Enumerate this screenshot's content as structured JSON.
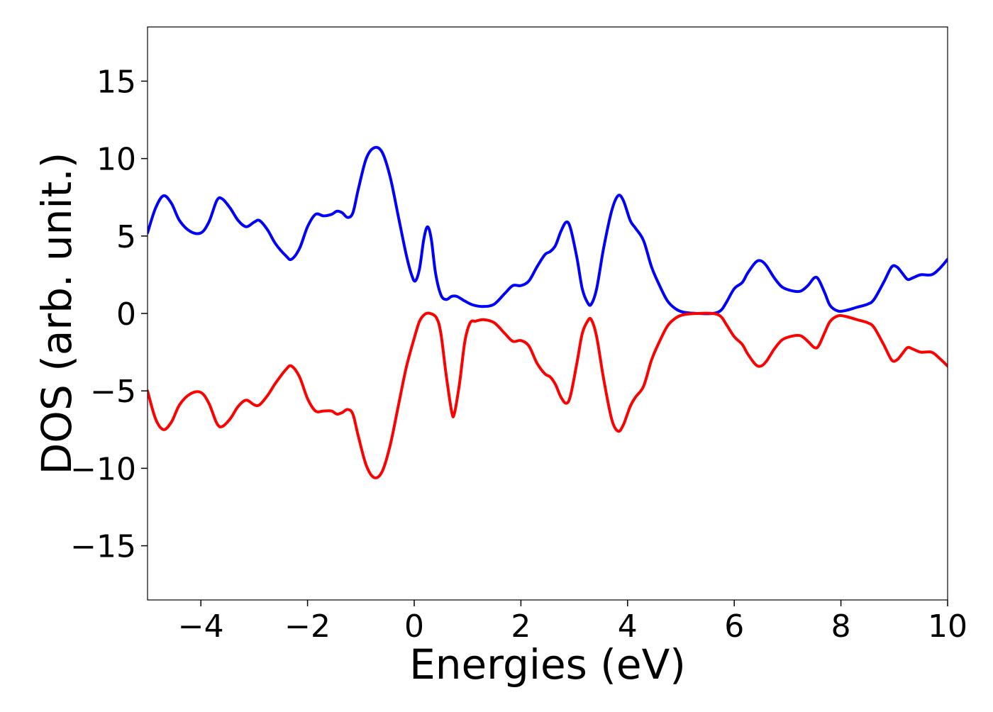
{
  "chart_data": {
    "type": "line",
    "title": "",
    "xlabel": "Energies (eV)",
    "ylabel": "DOS (arb. unit.)",
    "xlim": [
      -5,
      10
    ],
    "ylim": [
      -18.5,
      18.5
    ],
    "xticks": [
      -4,
      -2,
      0,
      2,
      4,
      6,
      8,
      10
    ],
    "xtick_labels": [
      "−4",
      "−2",
      "0",
      "2",
      "4",
      "6",
      "8",
      "10"
    ],
    "yticks": [
      15,
      10,
      5,
      0,
      -5,
      -10,
      -15
    ],
    "ytick_labels": [
      "15",
      "10",
      "5",
      "0",
      "−5",
      "−10",
      "−15"
    ],
    "grid": false,
    "legend": "none",
    "series": [
      {
        "color": "#0000ff",
        "points": [
          [
            -5.0,
            5.2
          ],
          [
            -4.85,
            6.8
          ],
          [
            -4.7,
            7.6
          ],
          [
            -4.55,
            7.1
          ],
          [
            -4.4,
            6.0
          ],
          [
            -4.2,
            5.3
          ],
          [
            -4.0,
            5.2
          ],
          [
            -3.85,
            5.9
          ],
          [
            -3.7,
            7.3
          ],
          [
            -3.6,
            7.4
          ],
          [
            -3.45,
            6.8
          ],
          [
            -3.3,
            6.0
          ],
          [
            -3.15,
            5.6
          ],
          [
            -3.0,
            5.9
          ],
          [
            -2.9,
            6.0
          ],
          [
            -2.75,
            5.4
          ],
          [
            -2.6,
            4.5
          ],
          [
            -2.4,
            3.7
          ],
          [
            -2.3,
            3.5
          ],
          [
            -2.15,
            4.2
          ],
          [
            -2.0,
            5.6
          ],
          [
            -1.85,
            6.4
          ],
          [
            -1.7,
            6.3
          ],
          [
            -1.55,
            6.4
          ],
          [
            -1.45,
            6.6
          ],
          [
            -1.35,
            6.5
          ],
          [
            -1.25,
            6.2
          ],
          [
            -1.15,
            6.5
          ],
          [
            -1.05,
            8.0
          ],
          [
            -0.9,
            10.0
          ],
          [
            -0.75,
            10.7
          ],
          [
            -0.6,
            10.4
          ],
          [
            -0.45,
            8.8
          ],
          [
            -0.3,
            6.3
          ],
          [
            -0.15,
            3.8
          ],
          [
            -0.05,
            2.5
          ],
          [
            0.02,
            2.1
          ],
          [
            0.1,
            2.9
          ],
          [
            0.18,
            4.8
          ],
          [
            0.25,
            5.6
          ],
          [
            0.32,
            4.8
          ],
          [
            0.4,
            2.6
          ],
          [
            0.5,
            1.2
          ],
          [
            0.6,
            0.9
          ],
          [
            0.7,
            1.1
          ],
          [
            0.8,
            1.1
          ],
          [
            0.95,
            0.8
          ],
          [
            1.1,
            0.55
          ],
          [
            1.3,
            0.45
          ],
          [
            1.5,
            0.6
          ],
          [
            1.7,
            1.3
          ],
          [
            1.85,
            1.8
          ],
          [
            2.0,
            1.8
          ],
          [
            2.15,
            2.1
          ],
          [
            2.3,
            3.0
          ],
          [
            2.45,
            3.8
          ],
          [
            2.55,
            4.0
          ],
          [
            2.65,
            4.4
          ],
          [
            2.75,
            5.3
          ],
          [
            2.85,
            5.9
          ],
          [
            2.93,
            5.5
          ],
          [
            3.05,
            3.6
          ],
          [
            3.15,
            1.6
          ],
          [
            3.25,
            0.7
          ],
          [
            3.32,
            0.6
          ],
          [
            3.42,
            1.6
          ],
          [
            3.55,
            4.2
          ],
          [
            3.7,
            6.6
          ],
          [
            3.82,
            7.6
          ],
          [
            3.92,
            7.3
          ],
          [
            4.05,
            6.0
          ],
          [
            4.15,
            5.5
          ],
          [
            4.3,
            4.7
          ],
          [
            4.45,
            3.0
          ],
          [
            4.6,
            1.8
          ],
          [
            4.75,
            0.8
          ],
          [
            4.9,
            0.3
          ],
          [
            5.05,
            0.08
          ],
          [
            5.3,
            0.0
          ],
          [
            5.6,
            0.0
          ],
          [
            5.75,
            0.2
          ],
          [
            5.85,
            0.7
          ],
          [
            6.0,
            1.6
          ],
          [
            6.15,
            2.0
          ],
          [
            6.25,
            2.6
          ],
          [
            6.4,
            3.3
          ],
          [
            6.5,
            3.4
          ],
          [
            6.6,
            3.1
          ],
          [
            6.75,
            2.3
          ],
          [
            6.9,
            1.7
          ],
          [
            7.1,
            1.45
          ],
          [
            7.25,
            1.45
          ],
          [
            7.38,
            1.8
          ],
          [
            7.5,
            2.3
          ],
          [
            7.58,
            2.2
          ],
          [
            7.7,
            1.3
          ],
          [
            7.8,
            0.5
          ],
          [
            7.95,
            0.15
          ],
          [
            8.1,
            0.2
          ],
          [
            8.3,
            0.4
          ],
          [
            8.5,
            0.6
          ],
          [
            8.62,
            0.9
          ],
          [
            8.8,
            2.0
          ],
          [
            8.95,
            3.0
          ],
          [
            9.05,
            3.0
          ],
          [
            9.15,
            2.6
          ],
          [
            9.25,
            2.2
          ],
          [
            9.35,
            2.3
          ],
          [
            9.5,
            2.5
          ],
          [
            9.7,
            2.5
          ],
          [
            9.85,
            2.9
          ],
          [
            10.0,
            3.5
          ]
        ]
      },
      {
        "color": "#ff0000",
        "points": [
          [
            -5.0,
            -5.0
          ],
          [
            -4.85,
            -6.8
          ],
          [
            -4.7,
            -7.5
          ],
          [
            -4.55,
            -7.0
          ],
          [
            -4.4,
            -5.9
          ],
          [
            -4.2,
            -5.2
          ],
          [
            -4.0,
            -5.1
          ],
          [
            -3.85,
            -5.8
          ],
          [
            -3.7,
            -7.1
          ],
          [
            -3.6,
            -7.3
          ],
          [
            -3.45,
            -6.8
          ],
          [
            -3.3,
            -6.0
          ],
          [
            -3.15,
            -5.6
          ],
          [
            -3.0,
            -5.9
          ],
          [
            -2.9,
            -5.9
          ],
          [
            -2.75,
            -5.3
          ],
          [
            -2.6,
            -4.5
          ],
          [
            -2.4,
            -3.6
          ],
          [
            -2.3,
            -3.4
          ],
          [
            -2.15,
            -4.1
          ],
          [
            -2.0,
            -5.5
          ],
          [
            -1.85,
            -6.3
          ],
          [
            -1.7,
            -6.3
          ],
          [
            -1.55,
            -6.3
          ],
          [
            -1.45,
            -6.5
          ],
          [
            -1.35,
            -6.4
          ],
          [
            -1.25,
            -6.2
          ],
          [
            -1.15,
            -6.5
          ],
          [
            -1.05,
            -7.9
          ],
          [
            -0.9,
            -9.8
          ],
          [
            -0.75,
            -10.6
          ],
          [
            -0.6,
            -10.2
          ],
          [
            -0.45,
            -8.5
          ],
          [
            -0.3,
            -6.0
          ],
          [
            -0.15,
            -3.5
          ],
          [
            0.0,
            -1.6
          ],
          [
            0.1,
            -0.5
          ],
          [
            0.2,
            -0.05
          ],
          [
            0.3,
            0.0
          ],
          [
            0.42,
            -0.3
          ],
          [
            0.5,
            -1.3
          ],
          [
            0.6,
            -4.0
          ],
          [
            0.7,
            -6.3
          ],
          [
            0.75,
            -6.5
          ],
          [
            0.85,
            -4.5
          ],
          [
            0.95,
            -1.8
          ],
          [
            1.05,
            -0.6
          ],
          [
            1.15,
            -0.5
          ],
          [
            1.3,
            -0.4
          ],
          [
            1.5,
            -0.6
          ],
          [
            1.7,
            -1.3
          ],
          [
            1.85,
            -1.8
          ],
          [
            2.0,
            -1.75
          ],
          [
            2.15,
            -2.1
          ],
          [
            2.3,
            -3.2
          ],
          [
            2.45,
            -3.9
          ],
          [
            2.55,
            -4.1
          ],
          [
            2.65,
            -4.6
          ],
          [
            2.75,
            -5.4
          ],
          [
            2.85,
            -5.8
          ],
          [
            2.93,
            -5.3
          ],
          [
            3.05,
            -3.2
          ],
          [
            3.15,
            -1.3
          ],
          [
            3.25,
            -0.5
          ],
          [
            3.32,
            -0.4
          ],
          [
            3.42,
            -1.5
          ],
          [
            3.55,
            -4.2
          ],
          [
            3.7,
            -6.8
          ],
          [
            3.82,
            -7.6
          ],
          [
            3.92,
            -7.2
          ],
          [
            4.05,
            -6.0
          ],
          [
            4.15,
            -5.4
          ],
          [
            4.3,
            -4.7
          ],
          [
            4.45,
            -3.0
          ],
          [
            4.6,
            -1.8
          ],
          [
            4.75,
            -0.8
          ],
          [
            4.9,
            -0.3
          ],
          [
            5.05,
            -0.08
          ],
          [
            5.3,
            0.0
          ],
          [
            5.6,
            0.0
          ],
          [
            5.75,
            -0.2
          ],
          [
            5.85,
            -0.7
          ],
          [
            6.0,
            -1.5
          ],
          [
            6.15,
            -2.0
          ],
          [
            6.25,
            -2.6
          ],
          [
            6.4,
            -3.3
          ],
          [
            6.5,
            -3.4
          ],
          [
            6.6,
            -3.1
          ],
          [
            6.75,
            -2.3
          ],
          [
            6.9,
            -1.7
          ],
          [
            7.1,
            -1.45
          ],
          [
            7.25,
            -1.45
          ],
          [
            7.38,
            -1.8
          ],
          [
            7.5,
            -2.2
          ],
          [
            7.58,
            -2.1
          ],
          [
            7.7,
            -1.2
          ],
          [
            7.8,
            -0.5
          ],
          [
            7.95,
            -0.15
          ],
          [
            8.1,
            -0.2
          ],
          [
            8.3,
            -0.4
          ],
          [
            8.5,
            -0.6
          ],
          [
            8.62,
            -0.9
          ],
          [
            8.8,
            -2.0
          ],
          [
            8.95,
            -3.0
          ],
          [
            9.05,
            -3.0
          ],
          [
            9.15,
            -2.6
          ],
          [
            9.25,
            -2.2
          ],
          [
            9.35,
            -2.3
          ],
          [
            9.5,
            -2.5
          ],
          [
            9.7,
            -2.5
          ],
          [
            9.85,
            -2.9
          ],
          [
            10.0,
            -3.4
          ]
        ]
      }
    ]
  }
}
